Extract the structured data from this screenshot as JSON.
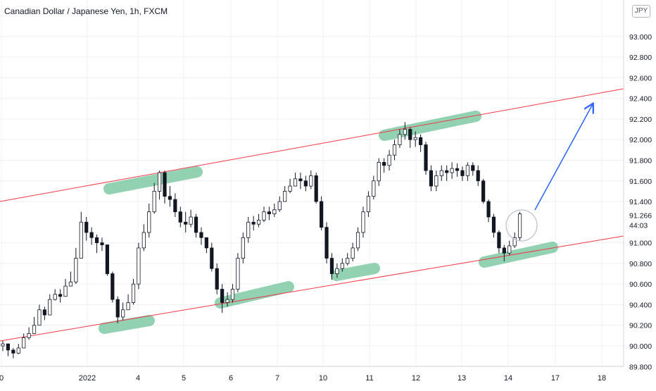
{
  "title": "Canadian Dollar / Japanese Yen, 1h, FXCM",
  "currency_badge": "JPY",
  "last_price_label": "91.266",
  "countdown_label": "44:03",
  "colors": {
    "candle": "#131722",
    "channel": "#f23645",
    "highlight": "#7fcba5",
    "arrow": "#2962ff",
    "grid": "#eef0f3",
    "axis_text": "#131722",
    "circle": "#c8cbd3"
  },
  "chart_data": {
    "type": "candlestick",
    "title": "Canadian Dollar / Japanese Yen, 1h, FXCM",
    "y_axis_ticks": [
      "93.000",
      "92.800",
      "92.600",
      "92.400",
      "92.200",
      "92.000",
      "91.800",
      "91.600",
      "91.400",
      "91.000",
      "90.800",
      "90.600",
      "90.400",
      "90.200",
      "90.000",
      "89.800"
    ],
    "x_axis_ticks": [
      "0",
      "2022",
      "4",
      "5",
      "6",
      "7",
      "10",
      "11",
      "12",
      "13",
      "14",
      "17",
      "18"
    ],
    "ylim": [
      89.78,
      93.3
    ],
    "grid": true,
    "closes": [
      90.02,
      89.96,
      89.93,
      89.98,
      90.08,
      90.12,
      90.2,
      90.35,
      90.3,
      90.45,
      90.5,
      90.48,
      90.58,
      90.62,
      90.85,
      91.2,
      91.1,
      91.05,
      91.0,
      90.98,
      90.7,
      90.45,
      90.28,
      90.35,
      90.42,
      90.6,
      90.95,
      91.1,
      91.3,
      91.5,
      91.68,
      91.45,
      91.42,
      91.3,
      91.2,
      91.18,
      91.25,
      91.1,
      91.05,
      90.95,
      90.75,
      90.55,
      90.42,
      90.45,
      90.55,
      90.85,
      91.05,
      91.2,
      91.18,
      91.22,
      91.3,
      91.28,
      91.32,
      91.4,
      91.5,
      91.55,
      91.62,
      91.6,
      91.55,
      91.65,
      91.4,
      91.15,
      90.85,
      90.7,
      90.75,
      90.8,
      90.85,
      90.95,
      91.1,
      91.3,
      91.45,
      91.6,
      91.78,
      91.75,
      91.85,
      91.95,
      92.05,
      92.1,
      92.0,
      92.02,
      91.95,
      91.7,
      91.55,
      91.65,
      91.7,
      91.68,
      91.72,
      91.7,
      91.65,
      91.75,
      91.7,
      91.6,
      91.4,
      91.25,
      91.1,
      90.95,
      90.9,
      90.97,
      91.05,
      91.28
    ],
    "highs": [
      90.05,
      90.02,
      89.98,
      90.02,
      90.12,
      90.18,
      90.28,
      90.4,
      90.38,
      90.5,
      90.55,
      90.55,
      90.65,
      90.72,
      90.95,
      91.3,
      91.25,
      91.15,
      91.08,
      91.05,
      90.98,
      90.72,
      90.48,
      90.42,
      90.5,
      90.65,
      91.0,
      91.18,
      91.38,
      91.58,
      91.7,
      91.7,
      91.55,
      91.48,
      91.35,
      91.3,
      91.32,
      91.28,
      91.15,
      91.05,
      91.0,
      90.8,
      90.6,
      90.52,
      90.6,
      90.9,
      91.1,
      91.25,
      91.26,
      91.28,
      91.35,
      91.35,
      91.38,
      91.45,
      91.55,
      91.62,
      91.68,
      91.68,
      91.65,
      91.7,
      91.68,
      91.45,
      91.2,
      90.9,
      90.8,
      90.85,
      90.9,
      91.0,
      91.15,
      91.35,
      91.5,
      91.65,
      91.82,
      91.82,
      91.9,
      92.0,
      92.1,
      92.17,
      92.12,
      92.08,
      92.05,
      91.98,
      91.75,
      91.7,
      91.75,
      91.75,
      91.78,
      91.77,
      91.74,
      91.78,
      91.78,
      91.75,
      91.62,
      91.42,
      91.28,
      91.12,
      90.98,
      91.02,
      91.1,
      91.3
    ],
    "lows": [
      89.95,
      89.9,
      89.88,
      89.92,
      90.02,
      90.06,
      90.15,
      90.25,
      90.25,
      90.38,
      90.44,
      90.42,
      90.52,
      90.58,
      90.6,
      90.85,
      91.02,
      90.98,
      90.9,
      90.92,
      90.68,
      90.42,
      90.22,
      90.25,
      90.35,
      90.4,
      90.55,
      90.92,
      91.05,
      91.28,
      91.42,
      91.38,
      91.35,
      91.25,
      91.15,
      91.1,
      91.15,
      91.05,
      90.98,
      90.9,
      90.72,
      90.5,
      90.32,
      90.38,
      90.42,
      90.52,
      90.8,
      91.0,
      91.12,
      91.15,
      91.2,
      91.22,
      91.25,
      91.3,
      91.4,
      91.48,
      91.55,
      91.52,
      91.5,
      91.52,
      91.38,
      91.12,
      90.8,
      90.64,
      90.66,
      90.72,
      90.78,
      90.82,
      90.92,
      91.05,
      91.25,
      91.42,
      91.55,
      91.68,
      91.7,
      91.8,
      91.92,
      92.0,
      91.92,
      91.93,
      91.88,
      91.66,
      91.5,
      91.5,
      91.6,
      91.6,
      91.62,
      91.64,
      91.6,
      91.6,
      91.65,
      91.55,
      91.38,
      91.2,
      91.05,
      90.9,
      90.82,
      90.88,
      90.95,
      91.02
    ],
    "channel_upper": {
      "start": [
        0,
        91.39
      ],
      "end": [
        99,
        92.49
      ]
    },
    "channel_lower": {
      "start": [
        0,
        90.04
      ],
      "end": [
        99,
        91.1
      ]
    },
    "annotations": [
      "support/resistance highlights",
      "projected breakout arrow"
    ]
  }
}
